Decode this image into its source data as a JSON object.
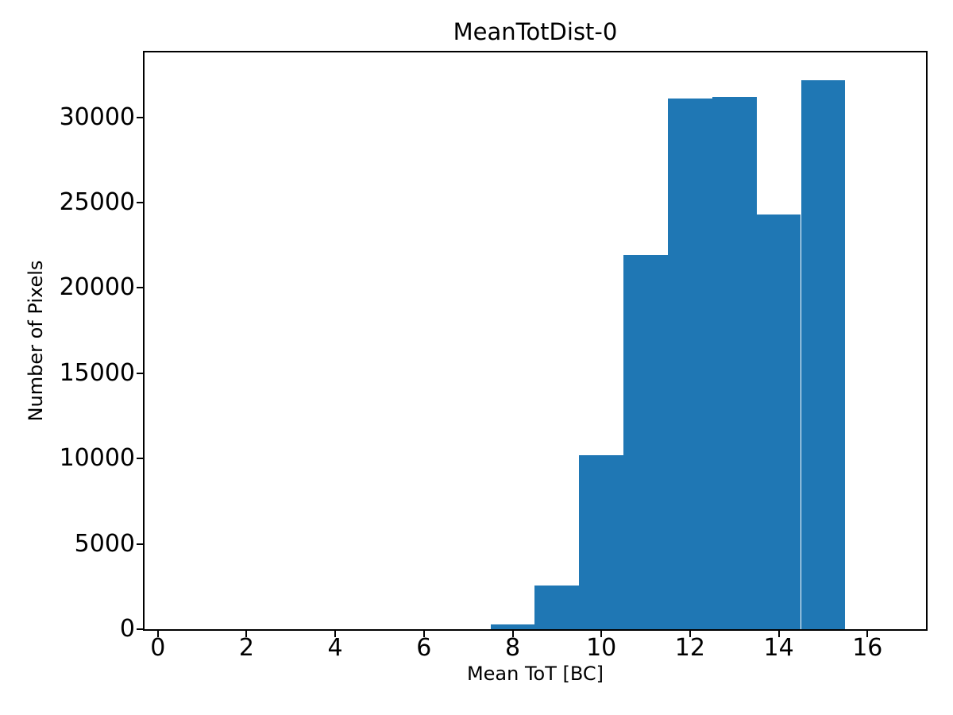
{
  "chart_data": {
    "type": "bar",
    "subtype": "histogram",
    "title": "MeanTotDist-0",
    "xlabel": "Mean ToT [BC]",
    "ylabel": "Number of Pixels",
    "bin_edges": [
      7.5,
      8.5,
      9.5,
      10.5,
      11.5,
      12.5,
      13.5,
      14.5,
      15.5
    ],
    "counts": [
      300,
      2550,
      10200,
      21950,
      31100,
      31200,
      24300,
      32150
    ],
    "bar_color": "#1f77b4",
    "xlim": [
      -0.3,
      17.32
    ],
    "ylim": [
      0,
      33800
    ],
    "x_ticks": [
      0,
      2,
      4,
      6,
      8,
      10,
      12,
      14,
      16
    ],
    "y_ticks": [
      0,
      5000,
      10000,
      15000,
      20000,
      25000,
      30000
    ],
    "grid": false,
    "legend_position": "none",
    "text_color": "#000000",
    "axis_color": "#000000",
    "background_color": "#ffffff"
  }
}
